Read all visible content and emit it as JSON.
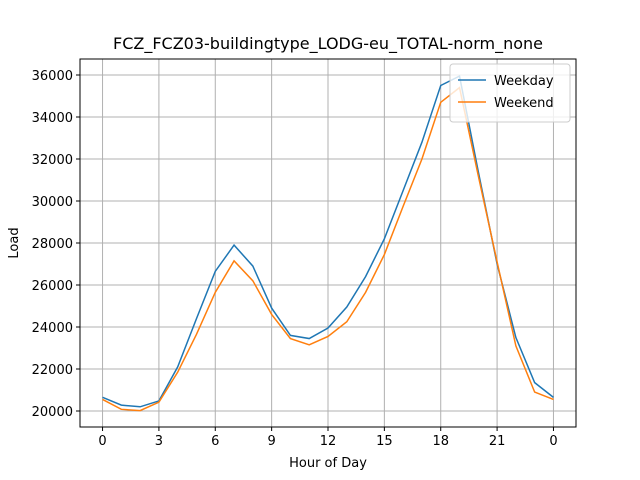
{
  "chart_data": {
    "type": "line",
    "title": "FCZ_FCZ03-buildingtype_LODG-eu_TOTAL-norm_none",
    "x_label": "Hour of Day",
    "y_label": "Load",
    "x": [
      0,
      1,
      2,
      3,
      4,
      5,
      6,
      7,
      8,
      9,
      10,
      11,
      12,
      13,
      14,
      15,
      16,
      17,
      18,
      19,
      20,
      21,
      22,
      23,
      24
    ],
    "series": [
      {
        "name": "Weekday",
        "color": "#1f77b4",
        "values": [
          20650,
          20280,
          20200,
          20480,
          22100,
          24400,
          26650,
          27900,
          26900,
          24900,
          23600,
          23450,
          23950,
          24950,
          26400,
          28200,
          30500,
          32800,
          35500,
          35950,
          31400,
          27000,
          23500,
          21350,
          20650
        ]
      },
      {
        "name": "Weekend",
        "color": "#ff7f0e",
        "values": [
          20550,
          20080,
          20020,
          20420,
          21850,
          23650,
          25650,
          27150,
          26200,
          24600,
          23450,
          23150,
          23550,
          24250,
          25650,
          27450,
          29750,
          32000,
          34700,
          35400,
          31200,
          27100,
          23100,
          20900,
          20550
        ]
      }
    ],
    "xlim": [
      -1.2,
      25.2
    ],
    "xticks": [
      0,
      3,
      6,
      9,
      12,
      15,
      18,
      21,
      {
        "value": 24,
        "label": "0"
      }
    ],
    "ylim": [
      19238,
      36762
    ],
    "yticks": [
      20000,
      22000,
      24000,
      26000,
      28000,
      30000,
      32000,
      34000,
      36000
    ],
    "grid": true,
    "legend": "upper right"
  }
}
